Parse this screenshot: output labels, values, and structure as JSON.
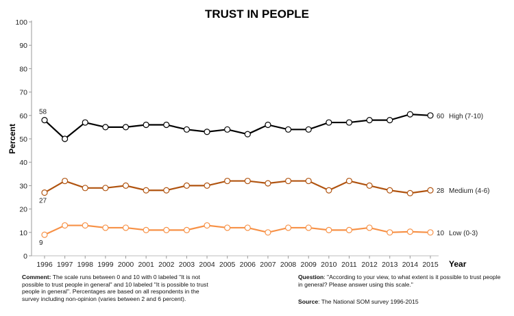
{
  "chart_data": {
    "type": "line",
    "title": "TRUST IN PEOPLE",
    "xlabel": "Year",
    "ylabel": "Percent",
    "ylim": [
      0,
      100
    ],
    "yticks": [
      0,
      10,
      20,
      30,
      40,
      50,
      60,
      70,
      80,
      90,
      100
    ],
    "grid": false,
    "x": [
      1996,
      1997,
      1998,
      1999,
      2000,
      2001,
      2002,
      2003,
      2004,
      2005,
      2006,
      2007,
      2008,
      2009,
      2010,
      2011,
      2012,
      2013,
      2014,
      2015
    ],
    "series": [
      {
        "name": "High (7-10)",
        "color": "#000000",
        "values": [
          58,
          50,
          57,
          55,
          55,
          56,
          56,
          54,
          53,
          54,
          52,
          56,
          54,
          54,
          57,
          57,
          58,
          58,
          60.5,
          60
        ],
        "start_label": "58",
        "end_label": "60"
      },
      {
        "name": "Medium (4-6)",
        "color": "#b0530f",
        "values": [
          27,
          32,
          29,
          29,
          30,
          28,
          28,
          30,
          30,
          32,
          32,
          31,
          32,
          32,
          28,
          32,
          30,
          28,
          26.8,
          28
        ],
        "start_label": "27",
        "end_label": "28"
      },
      {
        "name": "Low (0-3)",
        "color": "#f79146",
        "values": [
          9,
          13,
          13,
          12,
          12,
          11,
          11,
          11,
          13,
          12,
          12,
          10,
          12,
          12,
          11,
          11,
          12,
          10,
          10.3,
          10
        ],
        "start_label": "9",
        "end_label": "10"
      }
    ]
  },
  "notes": {
    "comment_label": "Comment:",
    "comment_text": " The scale runs between 0 and 10 with 0 labeled \"It is not possible to trust people in general\" and 10 labeled \"It is possible to trust people in general\". Percentages are based on all respondents in the survey including non-opinion (varies between 2 and 6 percent).",
    "question_label": "Question",
    "question_text": ": \"According to your view, to what extent is it possible to trust people in general? Please answer using this scale.\"",
    "source_label": "Source",
    "source_text": ": The National SOM survey 1996-2015"
  }
}
